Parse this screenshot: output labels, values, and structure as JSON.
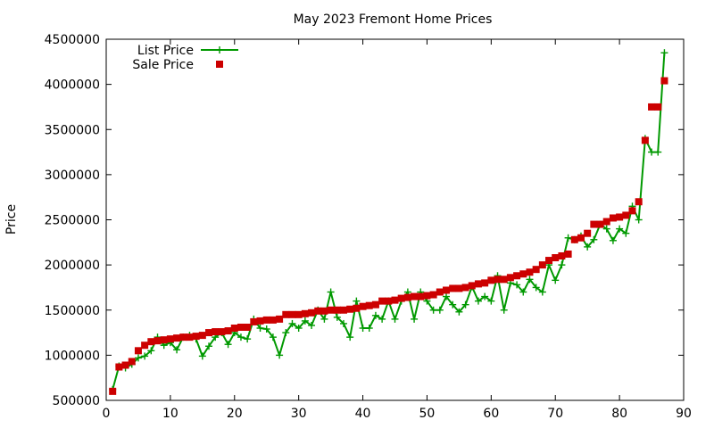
{
  "chart_data": {
    "type": "line",
    "title": "May 2023 Fremont Home Prices",
    "xlabel": "",
    "ylabel": "Price",
    "xlim": [
      0,
      90
    ],
    "ylim": [
      500000,
      4500000
    ],
    "xticks": [
      0,
      10,
      20,
      30,
      40,
      50,
      60,
      70,
      80,
      90
    ],
    "yticks": [
      500000,
      1000000,
      1500000,
      2000000,
      2500000,
      3000000,
      3500000,
      4000000,
      4500000
    ],
    "grid": false,
    "legend_position": "top-left",
    "series": [
      {
        "name": "List Price",
        "style": "line-points",
        "color": "#009900",
        "x": [
          1,
          2,
          3,
          4,
          5,
          6,
          7,
          8,
          9,
          10,
          11,
          12,
          13,
          14,
          15,
          16,
          17,
          18,
          19,
          20,
          21,
          22,
          23,
          24,
          25,
          26,
          27,
          28,
          29,
          30,
          31,
          32,
          33,
          34,
          35,
          36,
          37,
          38,
          39,
          40,
          41,
          42,
          43,
          44,
          45,
          46,
          47,
          48,
          49,
          50,
          51,
          52,
          53,
          54,
          55,
          56,
          57,
          58,
          59,
          60,
          61,
          62,
          63,
          64,
          65,
          66,
          67,
          68,
          69,
          70,
          71,
          72,
          73,
          74,
          75,
          76,
          77,
          78,
          79,
          80,
          81,
          82,
          83,
          84,
          85,
          86,
          87
        ],
        "y": [
          620000,
          880000,
          860000,
          900000,
          970000,
          990000,
          1050000,
          1200000,
          1110000,
          1140000,
          1060000,
          1200000,
          1220000,
          1180000,
          990000,
          1100000,
          1200000,
          1250000,
          1120000,
          1250000,
          1200000,
          1180000,
          1400000,
          1300000,
          1290000,
          1200000,
          1000000,
          1250000,
          1350000,
          1300000,
          1380000,
          1330000,
          1500000,
          1400000,
          1700000,
          1420000,
          1350000,
          1200000,
          1600000,
          1300000,
          1300000,
          1440000,
          1400000,
          1600000,
          1400000,
          1600000,
          1700000,
          1400000,
          1700000,
          1600000,
          1500000,
          1500000,
          1650000,
          1560000,
          1480000,
          1560000,
          1760000,
          1600000,
          1650000,
          1600000,
          1880000,
          1500000,
          1800000,
          1780000,
          1700000,
          1840000,
          1750000,
          1700000,
          2000000,
          1830000,
          2000000,
          2300000,
          2280000,
          2320000,
          2200000,
          2280000,
          2450000,
          2400000,
          2270000,
          2400000,
          2350000,
          2650000,
          2500000,
          3400000,
          3250000,
          3250000,
          4350000
        ]
      },
      {
        "name": "Sale Price",
        "style": "points",
        "color": "#cc0000",
        "x": [
          1,
          2,
          3,
          4,
          5,
          6,
          7,
          8,
          9,
          10,
          11,
          12,
          13,
          14,
          15,
          16,
          17,
          18,
          19,
          20,
          21,
          22,
          23,
          24,
          25,
          26,
          27,
          28,
          29,
          30,
          31,
          32,
          33,
          34,
          35,
          36,
          37,
          38,
          39,
          40,
          41,
          42,
          43,
          44,
          45,
          46,
          47,
          48,
          49,
          50,
          51,
          52,
          53,
          54,
          55,
          56,
          57,
          58,
          59,
          60,
          61,
          62,
          63,
          64,
          65,
          66,
          67,
          68,
          69,
          70,
          71,
          72,
          73,
          74,
          75,
          76,
          77,
          78,
          79,
          80,
          81,
          82,
          83,
          84,
          85,
          86,
          87
        ],
        "y": [
          600000,
          870000,
          890000,
          930000,
          1050000,
          1110000,
          1150000,
          1160000,
          1170000,
          1180000,
          1190000,
          1200000,
          1200000,
          1210000,
          1220000,
          1250000,
          1260000,
          1260000,
          1270000,
          1300000,
          1310000,
          1310000,
          1370000,
          1380000,
          1390000,
          1390000,
          1400000,
          1450000,
          1450000,
          1450000,
          1460000,
          1470000,
          1490000,
          1490000,
          1500000,
          1500000,
          1500000,
          1510000,
          1520000,
          1540000,
          1550000,
          1560000,
          1600000,
          1600000,
          1610000,
          1630000,
          1640000,
          1650000,
          1650000,
          1660000,
          1670000,
          1700000,
          1720000,
          1740000,
          1740000,
          1750000,
          1770000,
          1790000,
          1800000,
          1830000,
          1840000,
          1840000,
          1860000,
          1880000,
          1900000,
          1920000,
          1950000,
          2000000,
          2050000,
          2080000,
          2100000,
          2120000,
          2280000,
          2300000,
          2350000,
          2450000,
          2450000,
          2480000,
          2520000,
          2530000,
          2550000,
          2600000,
          2700000,
          3380000,
          3750000,
          3750000,
          4040000
        ]
      }
    ]
  }
}
